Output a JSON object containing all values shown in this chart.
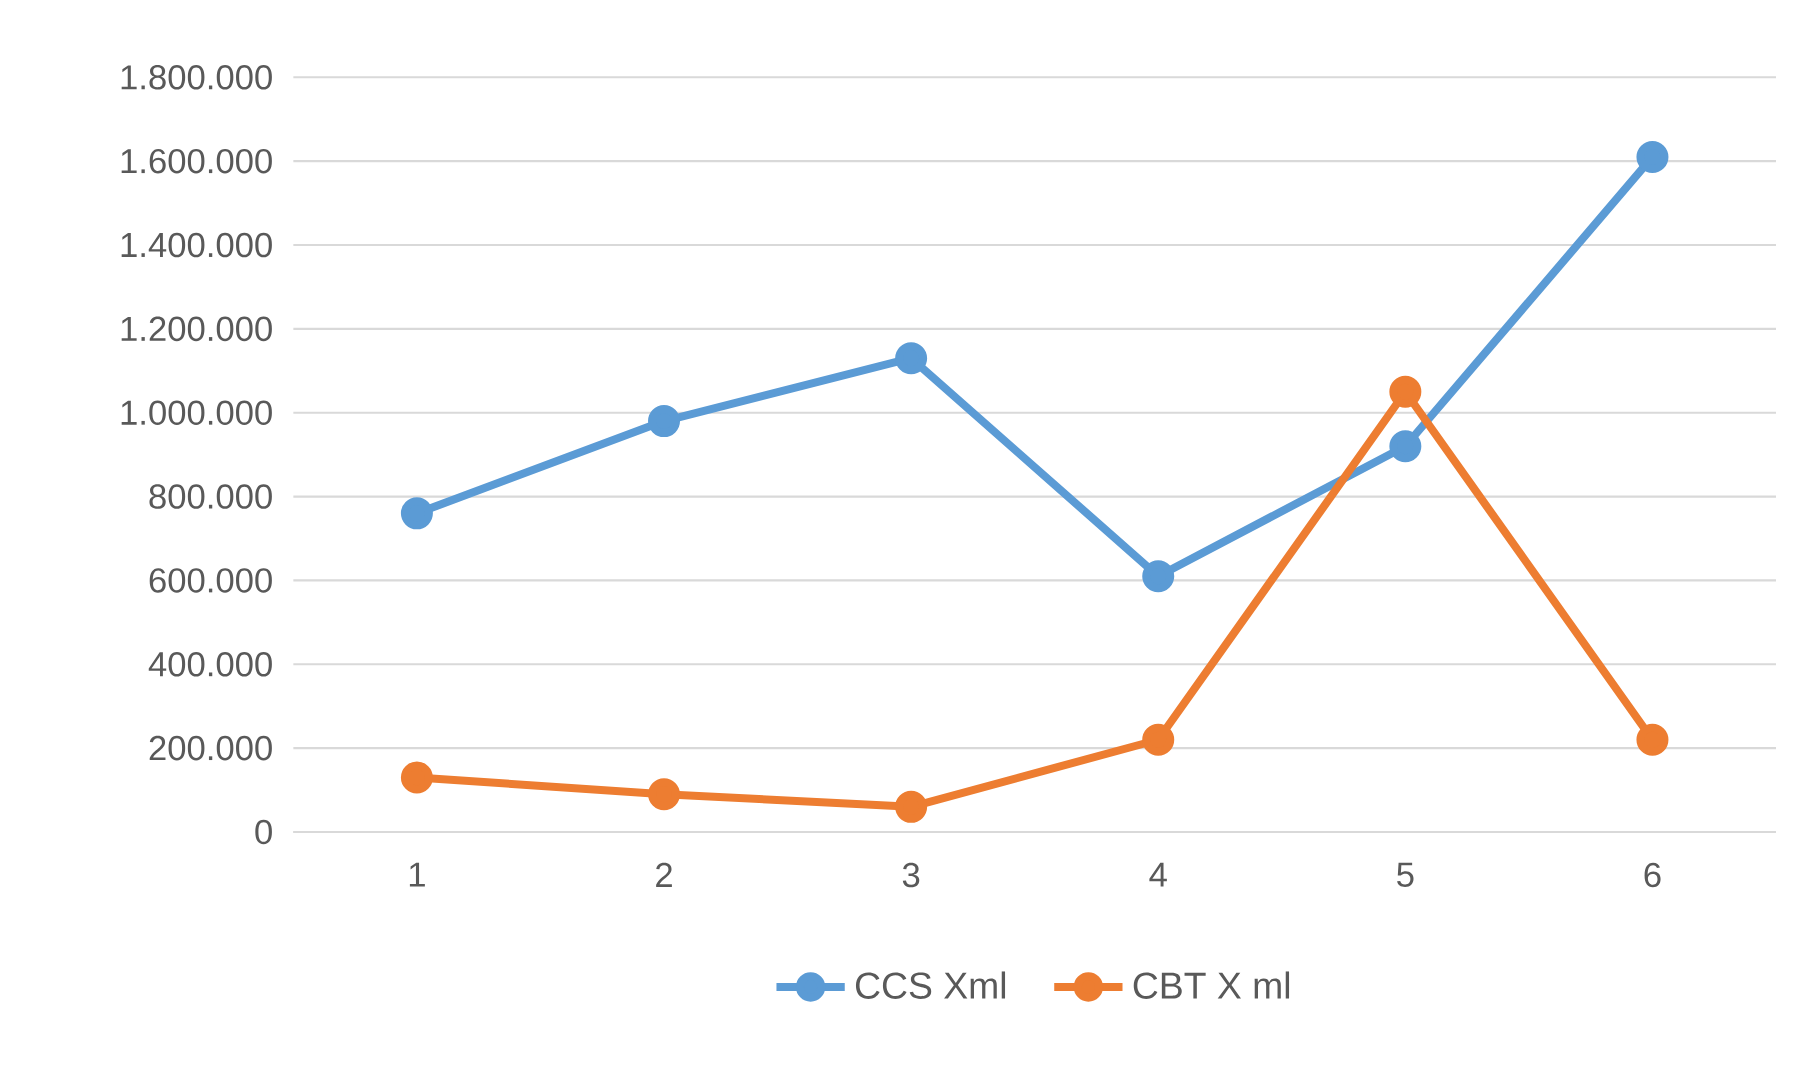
{
  "chart_data": {
    "type": "line",
    "categories": [
      "1",
      "2",
      "3",
      "4",
      "5",
      "6"
    ],
    "series": [
      {
        "name": "CCS Xml",
        "color": "#5b9bd5",
        "values": [
          760000,
          980000,
          1130000,
          610000,
          920000,
          1610000
        ]
      },
      {
        "name": "CBT X ml",
        "color": "#ed7d31",
        "values": [
          130000,
          90000,
          60000,
          220000,
          1050000,
          220000
        ]
      }
    ],
    "ylim": [
      0,
      1800000
    ],
    "yticks": [
      0,
      {
        "value": 200000,
        "label": "200.000"
      },
      {
        "value": 400000,
        "label": "400.000"
      },
      {
        "value": 600000,
        "label": "600.000"
      },
      {
        "value": 800000,
        "label": "800.000"
      },
      {
        "value": 1000000,
        "label": "1.000.000"
      },
      {
        "value": 1200000,
        "label": "1.200.000"
      },
      {
        "value": 1400000,
        "label": "1.400.000"
      },
      {
        "value": 1600000,
        "label": "1.600.000"
      },
      {
        "value": 1800000,
        "label": "1.800.000"
      }
    ],
    "grid": "y",
    "legend": "bottom",
    "marker": "circle",
    "line_style": "solid"
  }
}
